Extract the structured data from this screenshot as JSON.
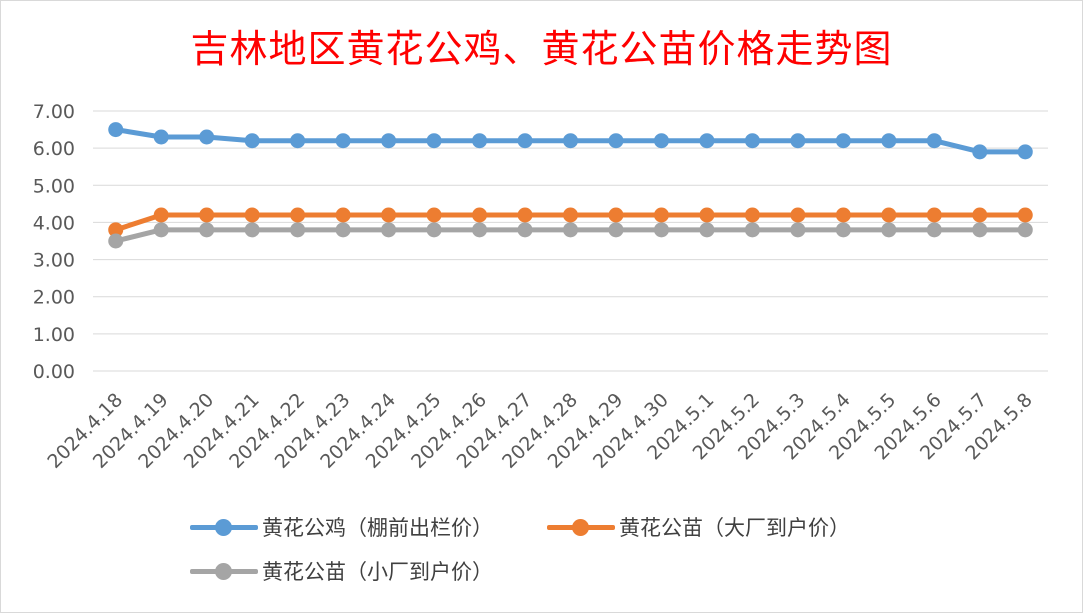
{
  "chart_data": {
    "type": "line",
    "title": "吉林地区黄花公鸡、黄花公苗价格走势图",
    "categories": [
      "2024.4.18",
      "2024.4.19",
      "2024.4.20",
      "2024.4.21",
      "2024.4.22",
      "2024.4.23",
      "2024.4.24",
      "2024.4.25",
      "2024.4.26",
      "2024.4.27",
      "2024.4.28",
      "2024.4.29",
      "2024.4.30",
      "2024.5.1",
      "2024.5.2",
      "2024.5.3",
      "2024.5.4",
      "2024.5.5",
      "2024.5.6",
      "2024.5.7",
      "2024.5.8"
    ],
    "series": [
      {
        "name": "黄花公鸡（棚前出栏价）",
        "color": "#5b9bd5",
        "values": [
          6.5,
          6.3,
          6.3,
          6.2,
          6.2,
          6.2,
          6.2,
          6.2,
          6.2,
          6.2,
          6.2,
          6.2,
          6.2,
          6.2,
          6.2,
          6.2,
          6.2,
          6.2,
          6.2,
          5.9,
          5.9
        ]
      },
      {
        "name": "黄花公苗（大厂到户价）",
        "color": "#ed7d31",
        "values": [
          3.8,
          4.2,
          4.2,
          4.2,
          4.2,
          4.2,
          4.2,
          4.2,
          4.2,
          4.2,
          4.2,
          4.2,
          4.2,
          4.2,
          4.2,
          4.2,
          4.2,
          4.2,
          4.2,
          4.2,
          4.2
        ]
      },
      {
        "name": "黄花公苗（小厂到户价）",
        "color": "#a5a5a5",
        "values": [
          3.5,
          3.8,
          3.8,
          3.8,
          3.8,
          3.8,
          3.8,
          3.8,
          3.8,
          3.8,
          3.8,
          3.8,
          3.8,
          3.8,
          3.8,
          3.8,
          3.8,
          3.8,
          3.8,
          3.8,
          3.8
        ]
      }
    ],
    "ylim": [
      0,
      7
    ],
    "yticks": [
      "0.00",
      "1.00",
      "2.00",
      "3.00",
      "4.00",
      "5.00",
      "6.00",
      "7.00"
    ],
    "grid": true,
    "legend_position": "bottom",
    "title_color": "#ff0000"
  }
}
